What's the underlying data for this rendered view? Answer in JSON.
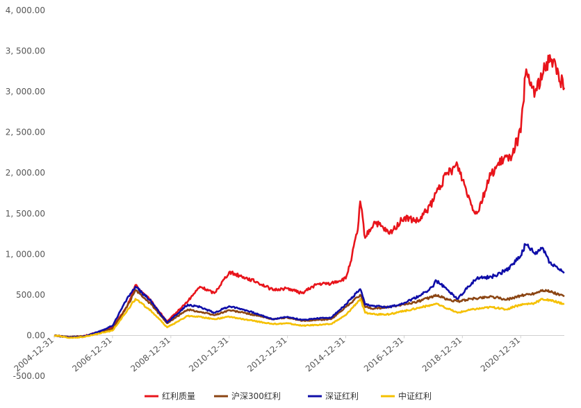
{
  "chart_data": {
    "type": "line",
    "title": "",
    "xlabel": "",
    "ylabel": "",
    "ylim": [
      -500,
      4000
    ],
    "yticks": [
      -500,
      0,
      500,
      1000,
      1500,
      2000,
      2500,
      3000,
      3500,
      4000
    ],
    "ytick_labels": [
      "-500.00",
      "0.00",
      "500.00",
      "1, 000.00",
      "1, 500.00",
      "2, 000.00",
      "2, 500.00",
      "3, 000.00",
      "3, 500.00",
      "4, 000.00"
    ],
    "xlim": [
      "2004-12-31",
      "2022-06-30"
    ],
    "xtick_labels": [
      "2004-12-31",
      "2006-12-31",
      "2008-12-31",
      "2010-12-31",
      "2012-12-31",
      "2014-12-31",
      "2016-12-31",
      "2018-12-31",
      "2020-12-31"
    ],
    "grid": false,
    "legend_position": "bottom",
    "series": [
      {
        "name": "红利质量",
        "color": "#e8141b",
        "x": [
          "2004-12-31",
          "2005-06-30",
          "2005-12-31",
          "2006-06-30",
          "2006-12-31",
          "2007-06-30",
          "2007-10-15",
          "2008-04-30",
          "2008-11-15",
          "2009-07-31",
          "2009-12-31",
          "2010-06-30",
          "2010-12-31",
          "2011-06-30",
          "2011-12-31",
          "2012-06-30",
          "2012-12-31",
          "2013-06-30",
          "2013-12-31",
          "2014-06-30",
          "2014-12-31",
          "2015-02-28",
          "2015-05-31",
          "2015-06-30",
          "2015-08-31",
          "2015-12-31",
          "2016-06-30",
          "2016-12-31",
          "2017-06-30",
          "2017-12-31",
          "2018-01-31",
          "2018-06-30",
          "2018-10-31",
          "2019-04-30",
          "2019-06-30",
          "2019-12-31",
          "2020-06-30",
          "2020-07-31",
          "2020-12-31",
          "2021-02-28",
          "2021-06-30",
          "2021-09-30",
          "2021-12-31",
          "2022-06-30"
        ],
        "values": [
          0,
          -20,
          -10,
          40,
          100,
          350,
          620,
          420,
          170,
          420,
          600,
          520,
          780,
          720,
          650,
          560,
          580,
          520,
          630,
          640,
          700,
          900,
          1300,
          1650,
          1200,
          1400,
          1250,
          1450,
          1400,
          1650,
          1750,
          2000,
          2100,
          1600,
          1500,
          2000,
          2200,
          2150,
          2500,
          3200,
          3000,
          3200,
          3450,
          3050
        ]
      },
      {
        "name": "沪深300红利",
        "color": "#8b4513",
        "x": [
          "2004-12-31",
          "2005-06-30",
          "2005-12-31",
          "2006-06-30",
          "2006-12-31",
          "2007-06-30",
          "2007-10-15",
          "2008-04-30",
          "2008-11-15",
          "2009-07-31",
          "2009-12-31",
          "2010-06-30",
          "2010-12-31",
          "2011-06-30",
          "2011-12-31",
          "2012-06-30",
          "2012-12-31",
          "2013-06-30",
          "2013-12-31",
          "2014-06-30",
          "2014-12-31",
          "2015-06-30",
          "2015-08-31",
          "2015-12-31",
          "2016-06-30",
          "2016-12-31",
          "2017-06-30",
          "2017-12-31",
          "2018-01-31",
          "2018-06-30",
          "2018-10-31",
          "2019-04-30",
          "2019-12-31",
          "2020-06-30",
          "2020-12-31",
          "2021-06-30",
          "2021-09-30",
          "2021-12-31",
          "2022-06-30"
        ],
        "values": [
          0,
          -20,
          -10,
          30,
          80,
          350,
          560,
          380,
          150,
          320,
          290,
          250,
          310,
          280,
          240,
          200,
          220,
          180,
          190,
          200,
          350,
          500,
          350,
          330,
          350,
          380,
          420,
          480,
          500,
          440,
          420,
          450,
          480,
          440,
          490,
          520,
          560,
          540,
          480
        ]
      },
      {
        "name": "深证红利",
        "color": "#0f0ea8",
        "x": [
          "2004-12-31",
          "2005-06-30",
          "2005-12-31",
          "2006-06-30",
          "2006-12-31",
          "2007-06-30",
          "2007-10-15",
          "2008-04-30",
          "2008-11-15",
          "2009-07-31",
          "2009-12-31",
          "2010-06-30",
          "2010-12-31",
          "2011-06-30",
          "2011-12-31",
          "2012-06-30",
          "2012-12-31",
          "2013-06-30",
          "2013-12-31",
          "2014-06-30",
          "2014-12-31",
          "2015-06-30",
          "2015-08-31",
          "2015-12-31",
          "2016-06-30",
          "2016-12-31",
          "2017-06-30",
          "2017-12-31",
          "2018-01-31",
          "2018-06-30",
          "2018-10-31",
          "2019-04-30",
          "2019-06-30",
          "2019-12-31",
          "2020-06-30",
          "2020-12-31",
          "2021-02-28",
          "2021-06-30",
          "2021-09-30",
          "2021-12-31",
          "2022-06-30"
        ],
        "values": [
          0,
          -25,
          -15,
          40,
          120,
          450,
          600,
          420,
          160,
          380,
          350,
          280,
          360,
          320,
          260,
          200,
          230,
          190,
          210,
          220,
          380,
          570,
          380,
          360,
          350,
          400,
          480,
          600,
          680,
          560,
          450,
          650,
          700,
          720,
          800,
          980,
          1120,
          1000,
          1080,
          900,
          770
        ]
      },
      {
        "name": "中证红利",
        "color": "#f5c000",
        "x": [
          "2004-12-31",
          "2005-06-30",
          "2005-12-31",
          "2006-06-30",
          "2006-12-31",
          "2007-06-30",
          "2007-10-15",
          "2008-04-30",
          "2008-11-15",
          "2009-07-31",
          "2009-12-31",
          "2010-06-30",
          "2010-12-31",
          "2011-06-30",
          "2011-12-31",
          "2012-06-30",
          "2012-12-31",
          "2013-06-30",
          "2013-12-31",
          "2014-06-30",
          "2014-12-31",
          "2015-06-30",
          "2015-08-31",
          "2015-12-31",
          "2016-06-30",
          "2016-12-31",
          "2017-06-30",
          "2017-12-31",
          "2018-01-31",
          "2018-06-30",
          "2018-10-31",
          "2019-04-30",
          "2019-12-31",
          "2020-06-30",
          "2020-12-31",
          "2021-06-30",
          "2021-09-30",
          "2021-12-31",
          "2022-06-30"
        ],
        "values": [
          0,
          -30,
          -20,
          20,
          60,
          300,
          450,
          300,
          100,
          240,
          230,
          200,
          230,
          200,
          170,
          140,
          150,
          120,
          130,
          140,
          250,
          450,
          280,
          260,
          260,
          300,
          340,
          380,
          390,
          330,
          280,
          320,
          350,
          320,
          380,
          400,
          450,
          430,
          390
        ]
      }
    ]
  }
}
